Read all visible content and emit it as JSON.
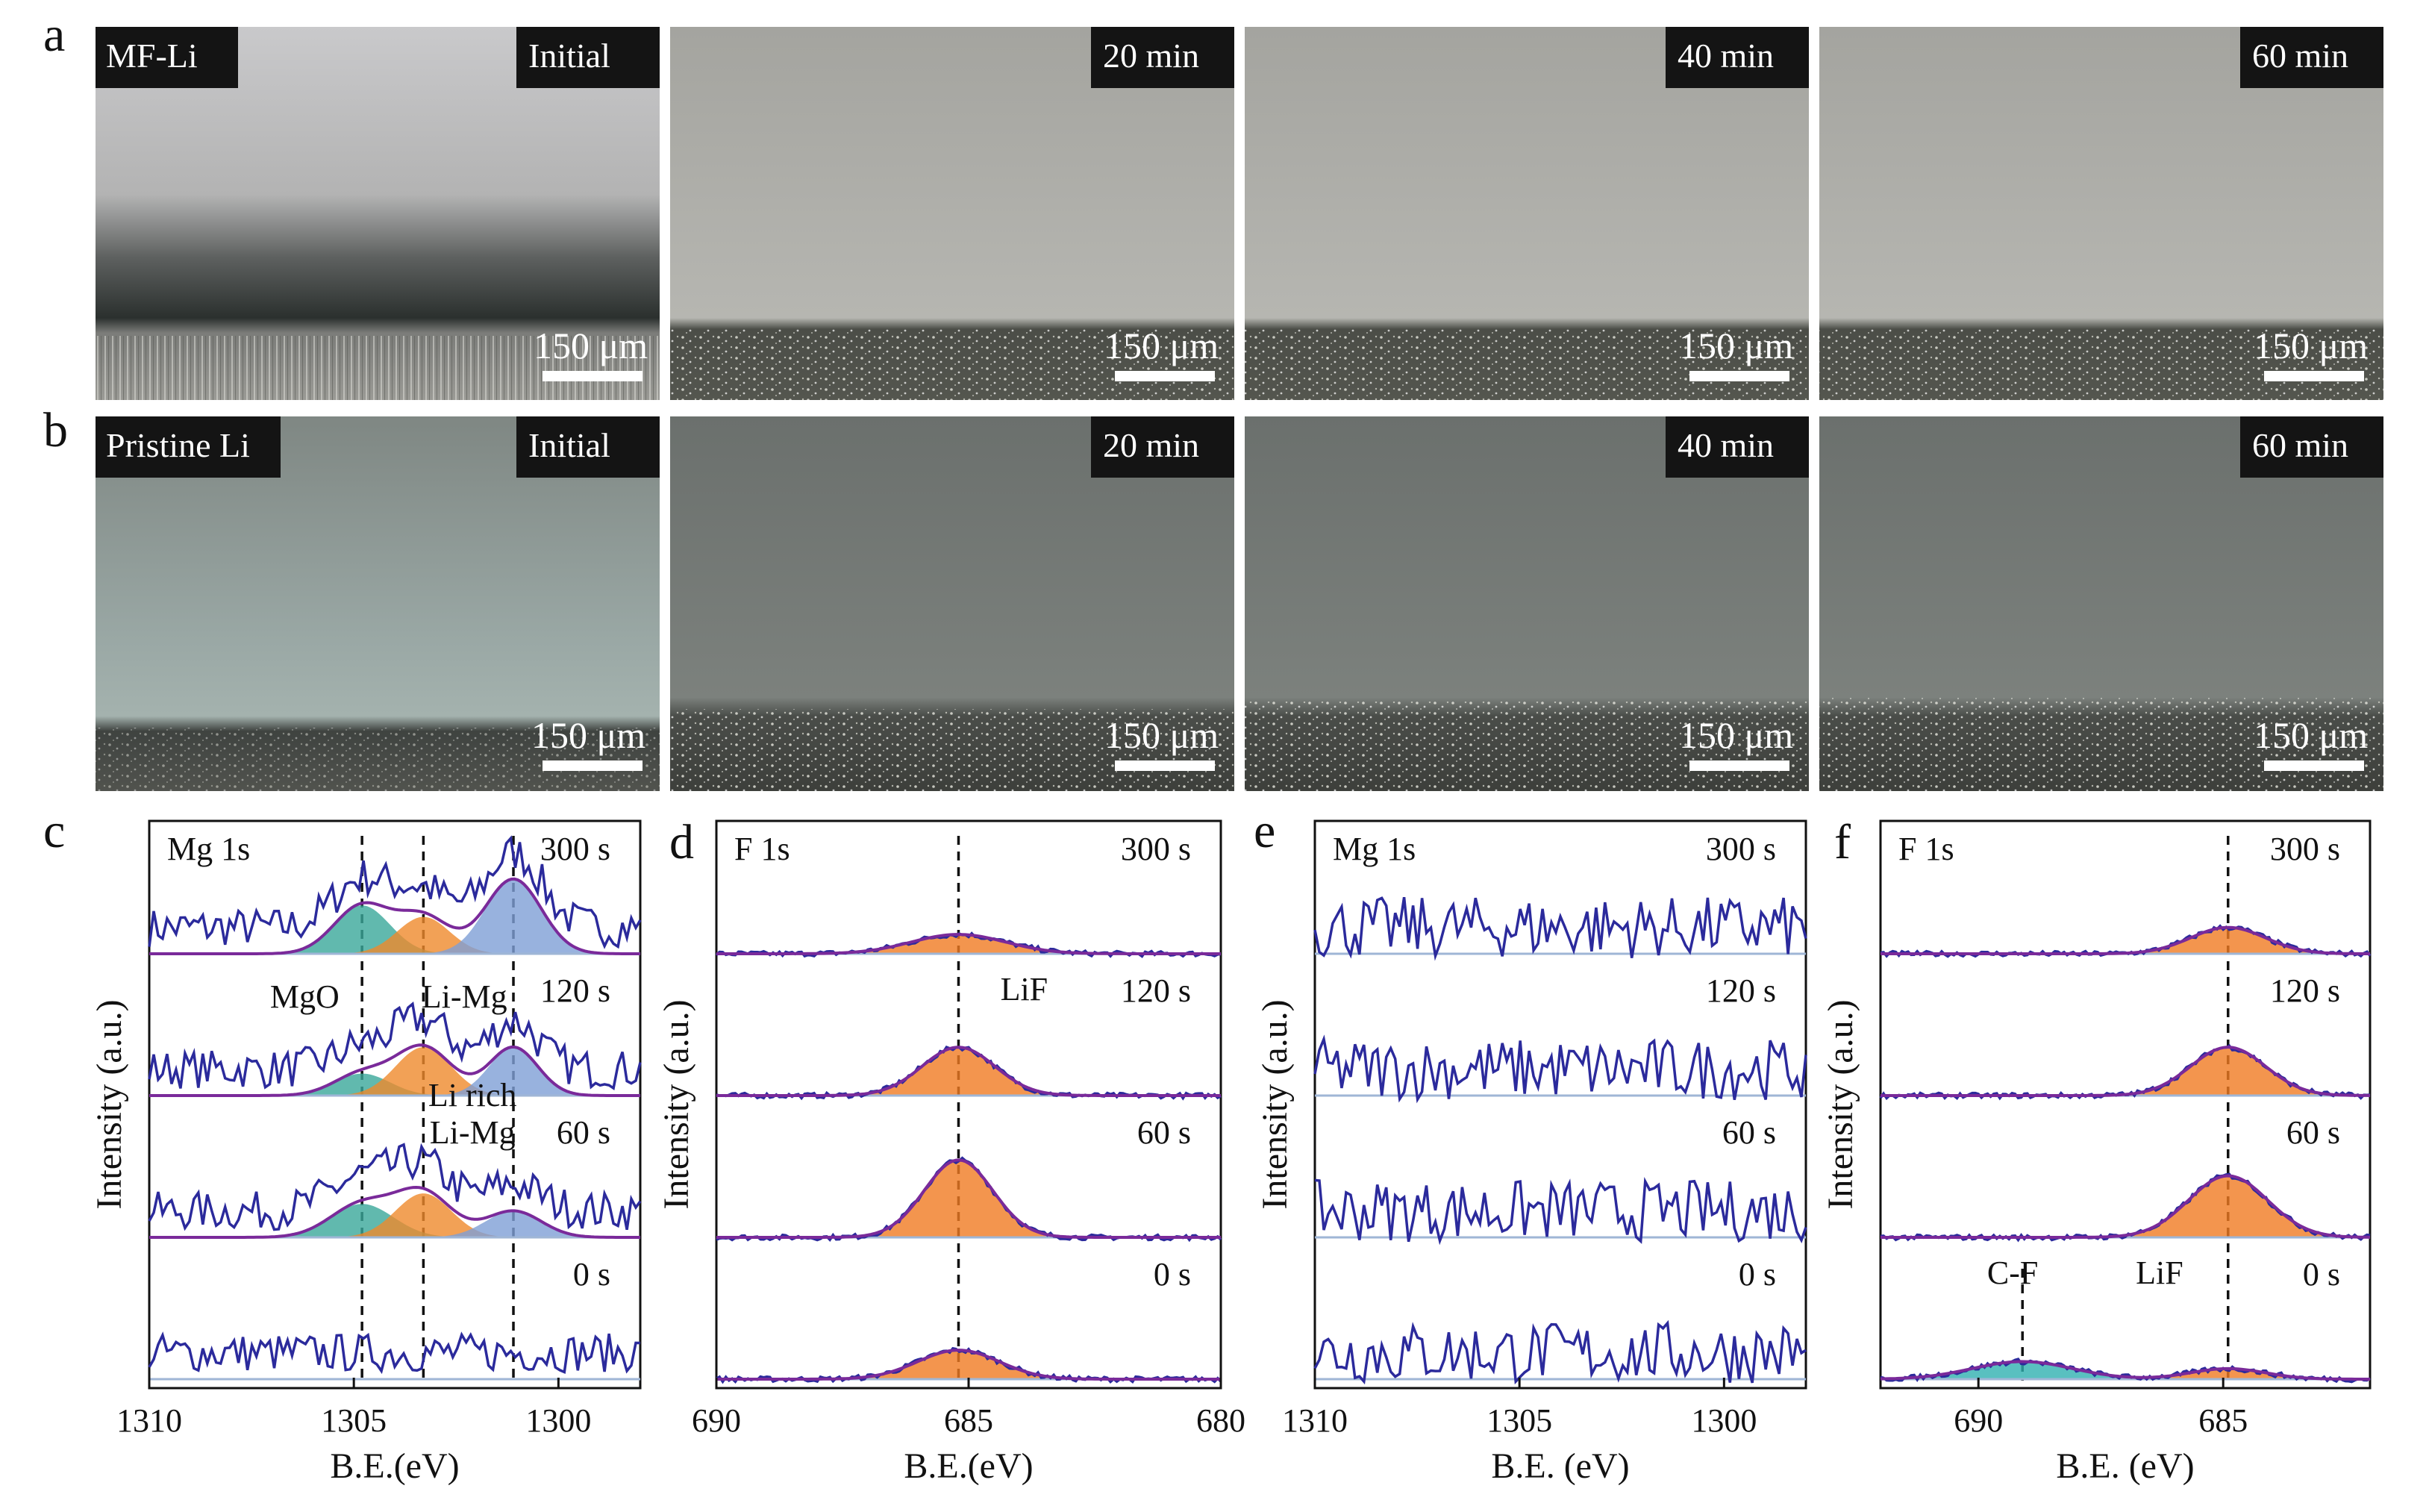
{
  "figure": {
    "panel_letters": [
      "a",
      "b",
      "c",
      "d",
      "e",
      "f"
    ],
    "rows": [
      {
        "id": "a",
        "sample": "MF-Li",
        "frames": [
          "Initial",
          "20 min",
          "40 min",
          "60 min"
        ]
      },
      {
        "id": "b",
        "sample": "Pristine Li",
        "frames": [
          "Initial",
          "20 min",
          "40 min",
          "60 min"
        ]
      }
    ],
    "scale_bar": "150 μm"
  },
  "colors": {
    "raw_trace": "#2b2a9c",
    "envelope": "#7a2a9a",
    "mgo": "#3aa79a",
    "li_mg": "#ef8a2c",
    "li_rich": "#7e9fd6",
    "lif": "#f07b22",
    "cf": "#2fb0b0"
  },
  "chart_data": [
    {
      "panel": "c",
      "type": "line",
      "title": "Mg 1s",
      "xlabel": "B.E.(eV)",
      "ylabel": "Intensity (a.u.)",
      "xlim": [
        1310,
        1298
      ],
      "x_ticks": [
        1310,
        1305,
        1300
      ],
      "dashed_refs": [
        1304.8,
        1303.3,
        1301.1
      ],
      "annotations": [
        "MgO",
        "Li-Mg",
        "Li rich",
        "Li-Mg"
      ],
      "series": [
        {
          "name": "300 s",
          "peaks": [
            {
              "name": "MgO",
              "center": 1304.8,
              "height": 0.55,
              "fwhm": 1.6
            },
            {
              "name": "Li-Mg",
              "center": 1303.3,
              "height": 0.42,
              "fwhm": 1.5
            },
            {
              "name": "Li rich Li-Mg",
              "center": 1301.1,
              "height": 0.85,
              "fwhm": 1.6
            }
          ]
        },
        {
          "name": "120 s",
          "peaks": [
            {
              "name": "MgO",
              "center": 1304.8,
              "height": 0.25,
              "fwhm": 1.6
            },
            {
              "name": "Li-Mg",
              "center": 1303.3,
              "height": 0.55,
              "fwhm": 1.6
            },
            {
              "name": "Li rich Li-Mg",
              "center": 1301.1,
              "height": 0.55,
              "fwhm": 1.4
            }
          ]
        },
        {
          "name": "60 s",
          "peaks": [
            {
              "name": "MgO",
              "center": 1304.8,
              "height": 0.38,
              "fwhm": 1.8
            },
            {
              "name": "Li-Mg",
              "center": 1303.3,
              "height": 0.5,
              "fwhm": 1.6
            },
            {
              "name": "Li rich Li-Mg",
              "center": 1301.1,
              "height": 0.3,
              "fwhm": 1.6
            }
          ]
        },
        {
          "name": "0 s",
          "peaks": []
        }
      ]
    },
    {
      "panel": "d",
      "type": "line",
      "title": "F 1s",
      "xlabel": "B.E.(eV)",
      "ylabel": "Intensity (a.u.)",
      "xlim": [
        690,
        680
      ],
      "x_ticks": [
        690,
        685,
        680
      ],
      "dashed_refs": [
        685.2
      ],
      "annotations": [
        "LiF"
      ],
      "series": [
        {
          "name": "300 s",
          "peaks": [
            {
              "name": "LiF",
              "center": 685.2,
              "height": 0.22,
              "fwhm": 2.2
            }
          ]
        },
        {
          "name": "120 s",
          "peaks": [
            {
              "name": "LiF",
              "center": 685.2,
              "height": 0.55,
              "fwhm": 1.7
            }
          ]
        },
        {
          "name": "60 s",
          "peaks": [
            {
              "name": "LiF",
              "center": 685.2,
              "height": 0.88,
              "fwhm": 1.6
            }
          ]
        },
        {
          "name": "0 s",
          "peaks": [
            {
              "name": "LiF",
              "center": 685.2,
              "height": 0.33,
              "fwhm": 1.9
            }
          ]
        }
      ]
    },
    {
      "panel": "e",
      "type": "line",
      "title": "Mg 1s",
      "xlabel": "B.E. (eV)",
      "ylabel": "Intensity (a.u.)",
      "xlim": [
        1310,
        1298
      ],
      "x_ticks": [
        1310,
        1305,
        1300
      ],
      "series": [
        {
          "name": "300 s",
          "peaks": []
        },
        {
          "name": "120 s",
          "peaks": []
        },
        {
          "name": "60 s",
          "peaks": []
        },
        {
          "name": "0 s",
          "peaks": []
        }
      ]
    },
    {
      "panel": "f",
      "type": "line",
      "title": "F 1s",
      "xlabel": "B.E. (eV)",
      "ylabel": "Intensity (a.u.)",
      "xlim": [
        692,
        682
      ],
      "x_ticks": [
        690,
        685
      ],
      "dashed_refs": [
        689.1,
        684.9
      ],
      "annotations": [
        "C-F",
        "LiF"
      ],
      "series": [
        {
          "name": "300 s",
          "peaks": [
            {
              "name": "LiF",
              "center": 684.9,
              "height": 0.3,
              "fwhm": 1.8
            }
          ]
        },
        {
          "name": "120 s",
          "peaks": [
            {
              "name": "LiF",
              "center": 684.9,
              "height": 0.55,
              "fwhm": 1.8
            }
          ]
        },
        {
          "name": "60 s",
          "peaks": [
            {
              "name": "LiF",
              "center": 684.9,
              "height": 0.7,
              "fwhm": 1.9
            }
          ]
        },
        {
          "name": "0 s",
          "peaks": [
            {
              "name": "C-F",
              "center": 689.1,
              "height": 0.2,
              "fwhm": 2.4
            },
            {
              "name": "LiF",
              "center": 684.9,
              "height": 0.12,
              "fwhm": 1.8
            }
          ]
        }
      ]
    }
  ]
}
